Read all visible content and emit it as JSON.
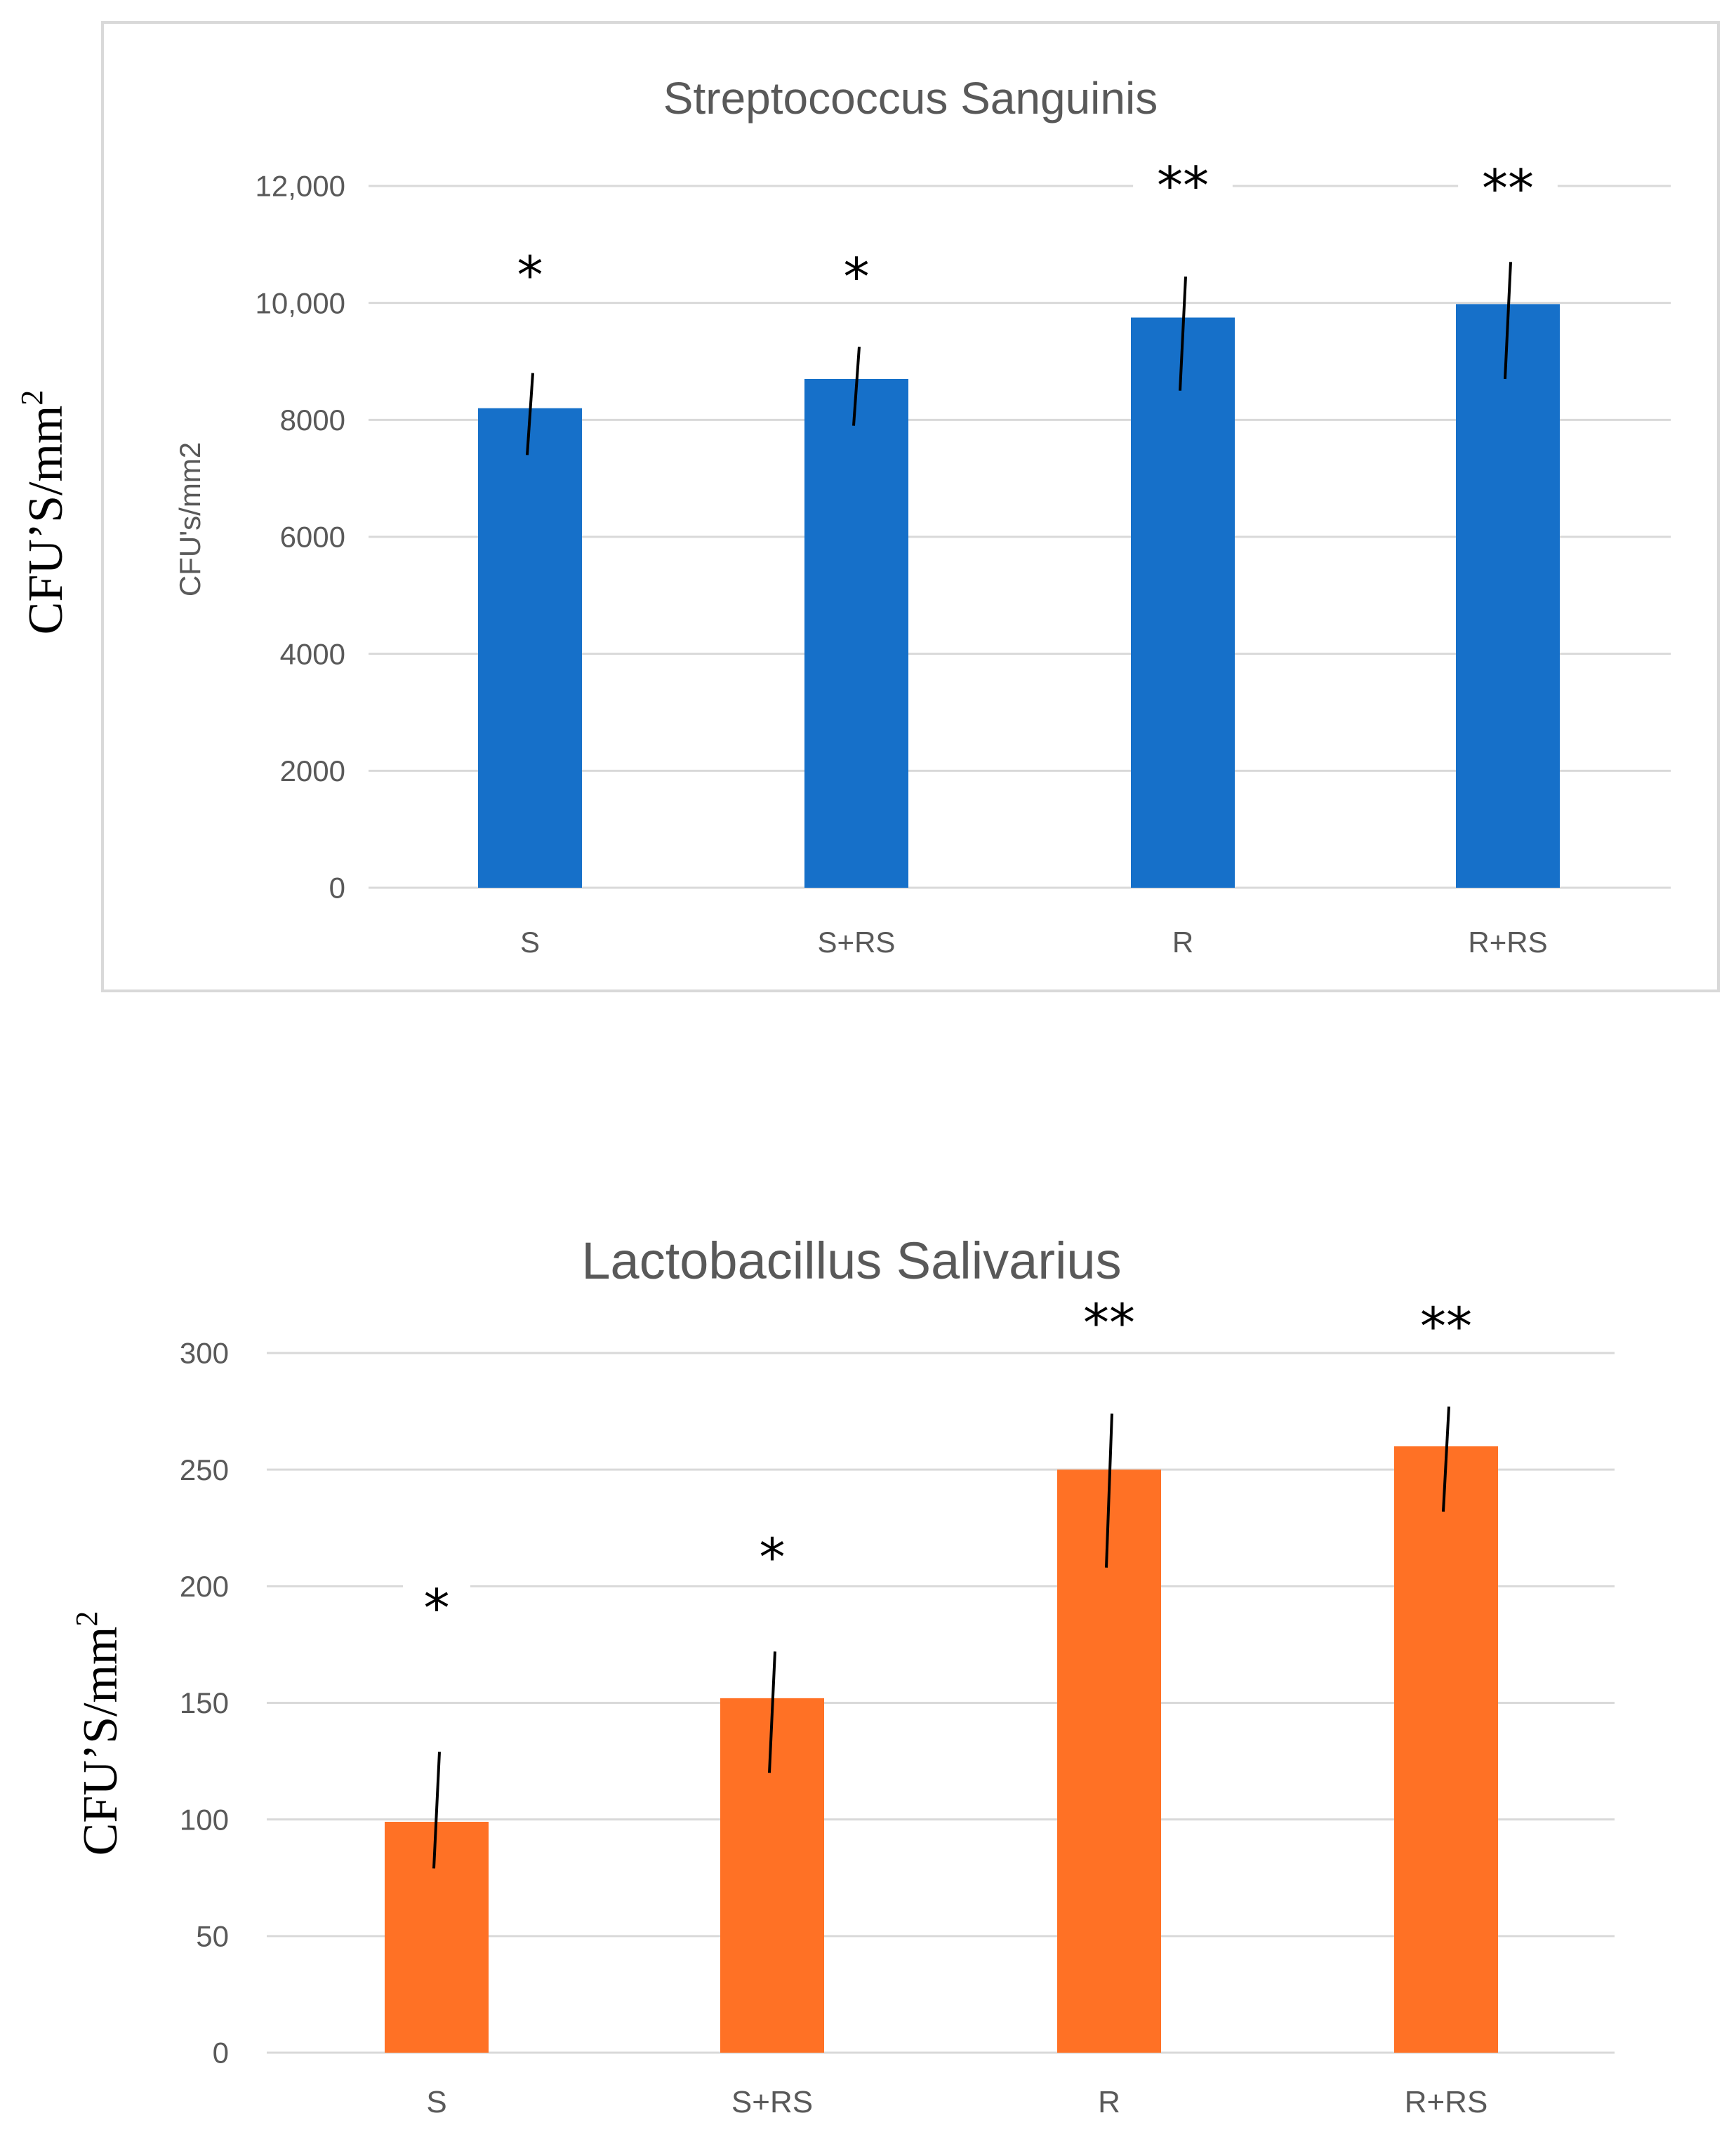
{
  "chart_data": [
    {
      "type": "bar",
      "title": "Streptococcus Sanguinis",
      "categories": [
        "S",
        "S+RS",
        "R",
        "R+RS"
      ],
      "values": [
        8200,
        8700,
        9750,
        9980
      ],
      "error_low": [
        7400,
        7900,
        8500,
        8700
      ],
      "error_high": [
        8800,
        9250,
        10450,
        10700
      ],
      "significance": [
        "*",
        "*",
        "**",
        "**"
      ],
      "ylim": [
        0,
        12000
      ],
      "yticks": [
        0,
        2000,
        4000,
        6000,
        8000,
        10000,
        12000
      ],
      "ytick_labels": [
        "0",
        "2000",
        "4000",
        "6000",
        "8000",
        "10,000",
        "12,000"
      ],
      "ylabel": "CFU's/mm2",
      "outer_ylabel": "CFU’S/mm",
      "outer_ylabel_sup": "2",
      "xlabel": "",
      "grid": true,
      "color": "#1670c9"
    },
    {
      "type": "bar",
      "title": "Lactobacillus Salivarius",
      "categories": [
        "S",
        "S+RS",
        "R",
        "R+RS"
      ],
      "values": [
        99,
        152,
        250,
        260
      ],
      "error_low": [
        79,
        120,
        208,
        232
      ],
      "error_high": [
        129,
        172,
        274,
        277
      ],
      "significance": [
        "*",
        "*",
        "**",
        "**"
      ],
      "ylim": [
        0,
        300
      ],
      "yticks": [
        0,
        50,
        100,
        150,
        200,
        250,
        300
      ],
      "ytick_labels": [
        "0",
        "50",
        "100",
        "150",
        "200",
        "250",
        "300"
      ],
      "ylabel": "",
      "outer_ylabel": "CFU’S/mm",
      "outer_ylabel_sup": "2",
      "xlabel": "",
      "grid": true,
      "color": "#ff7125"
    }
  ]
}
